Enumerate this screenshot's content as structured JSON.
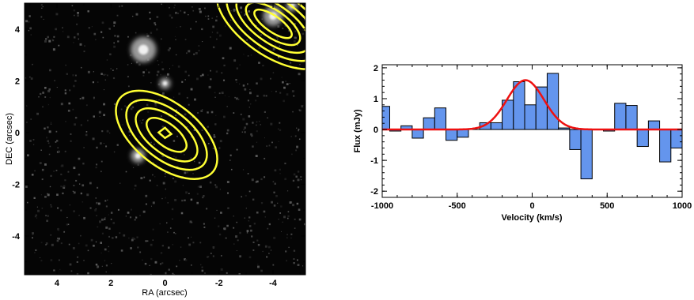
{
  "chart_data": [
    {
      "type": "contour",
      "xlabel": "RA (arcsec)",
      "ylabel": "DEC (arcsec)",
      "xlim": [
        5.2,
        -5.2
      ],
      "ylim": [
        -5.5,
        5.0
      ],
      "xticks": [
        4,
        2,
        0,
        -2,
        -4
      ],
      "yticks": [
        4,
        2,
        0,
        -2,
        -4
      ],
      "xtick_labels": [
        "4",
        "2",
        "0",
        "-2",
        "-4"
      ],
      "ytick_labels": [
        "4",
        "2",
        "0",
        "-2",
        "-4"
      ],
      "background": "grayscale image",
      "contour_color": "#ffff33",
      "sources": [
        {
          "ra": 0.0,
          "dec": 0.0,
          "levels": 5
        },
        {
          "ra": -4.0,
          "dec": 4.0,
          "levels": 5
        }
      ],
      "bright_sources": [
        {
          "ra": 0.8,
          "dec": 3.2
        },
        {
          "ra": -4.0,
          "dec": 4.5
        },
        {
          "ra": 0.0,
          "dec": 1.9
        },
        {
          "ra": 1.0,
          "dec": -0.9
        },
        {
          "ra": -4.7,
          "dec": 4.9
        }
      ]
    },
    {
      "type": "histogram-step",
      "xlabel": "Velocity (km/s)",
      "ylabel": "Flux (mJy)",
      "xlim": [
        -1000,
        1000
      ],
      "ylim": [
        -2.2,
        2.1
      ],
      "xticks": [
        -1000,
        -500,
        0,
        500,
        1000
      ],
      "yticks": [
        -2,
        -1,
        0,
        1,
        2
      ],
      "xtick_labels": [
        "-1000",
        "-500",
        "0",
        "500",
        "1000"
      ],
      "ytick_labels": [
        "-2",
        "-1",
        "0",
        "1",
        "2"
      ],
      "fill_color": "#6495ed",
      "channels": [
        {
          "x0": -1000,
          "x1": -950,
          "y": 0.75
        },
        {
          "x0": -950,
          "x1": -875,
          "y": -0.05
        },
        {
          "x0": -875,
          "x1": -800,
          "y": 0.12
        },
        {
          "x0": -800,
          "x1": -725,
          "y": -0.28
        },
        {
          "x0": -725,
          "x1": -650,
          "y": 0.38
        },
        {
          "x0": -650,
          "x1": -575,
          "y": 0.7
        },
        {
          "x0": -575,
          "x1": -500,
          "y": -0.35
        },
        {
          "x0": -500,
          "x1": -425,
          "y": -0.25
        },
        {
          "x0": -425,
          "x1": -350,
          "y": 0.0
        },
        {
          "x0": -350,
          "x1": -275,
          "y": 0.22
        },
        {
          "x0": -275,
          "x1": -200,
          "y": 0.22
        },
        {
          "x0": -200,
          "x1": -125,
          "y": 0.95
        },
        {
          "x0": -125,
          "x1": -50,
          "y": 1.55
        },
        {
          "x0": -50,
          "x1": 25,
          "y": 0.8
        },
        {
          "x0": 25,
          "x1": 100,
          "y": 1.38
        },
        {
          "x0": 100,
          "x1": 175,
          "y": 1.82
        },
        {
          "x0": 175,
          "x1": 250,
          "y": 0.05
        },
        {
          "x0": 250,
          "x1": 325,
          "y": -0.65
        },
        {
          "x0": 325,
          "x1": 400,
          "y": -1.6
        },
        {
          "x0": 400,
          "x1": 475,
          "y": 0.0
        },
        {
          "x0": 475,
          "x1": 550,
          "y": -0.05
        },
        {
          "x0": 550,
          "x1": 625,
          "y": 0.85
        },
        {
          "x0": 625,
          "x1": 700,
          "y": 0.78
        },
        {
          "x0": 700,
          "x1": 775,
          "y": -0.55
        },
        {
          "x0": 775,
          "x1": 850,
          "y": 0.28
        },
        {
          "x0": 850,
          "x1": 925,
          "y": -1.05
        },
        {
          "x0": 925,
          "x1": 1000,
          "y": -0.6
        }
      ],
      "gaussian_fit": {
        "amplitude": 1.6,
        "center": -45,
        "fwhm": 290,
        "color": "#ee1111"
      }
    }
  ]
}
